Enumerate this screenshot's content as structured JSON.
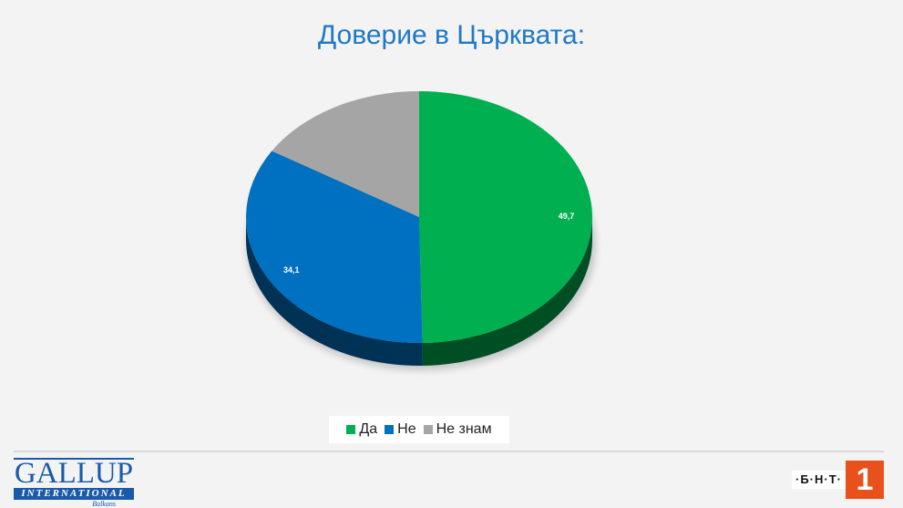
{
  "title": "Доверие в Църквата:",
  "chart_data": {
    "type": "pie",
    "title": "Доверие в Църквата:",
    "categories": [
      "Да",
      "Не",
      "Не знам"
    ],
    "values": [
      49.7,
      34.1,
      16.2
    ],
    "data_labels": [
      "49,7",
      "34,1",
      ""
    ],
    "colors": [
      "#00b050",
      "#0070c0",
      "#a5a5a5"
    ],
    "legend_position": "bottom",
    "style": "3d-pie"
  },
  "legend": {
    "items": [
      {
        "label": "Да",
        "color": "#00b050"
      },
      {
        "label": "Не",
        "color": "#0070c0"
      },
      {
        "label": "Не знам",
        "color": "#a5a5a5"
      }
    ]
  },
  "footer": {
    "gallup_word": "GALLUP",
    "gallup_intl": "INTERNATIONAL",
    "gallup_region": "Balkans",
    "bnt_text": "·Б·Н·Т·",
    "bnt_number": "1"
  }
}
